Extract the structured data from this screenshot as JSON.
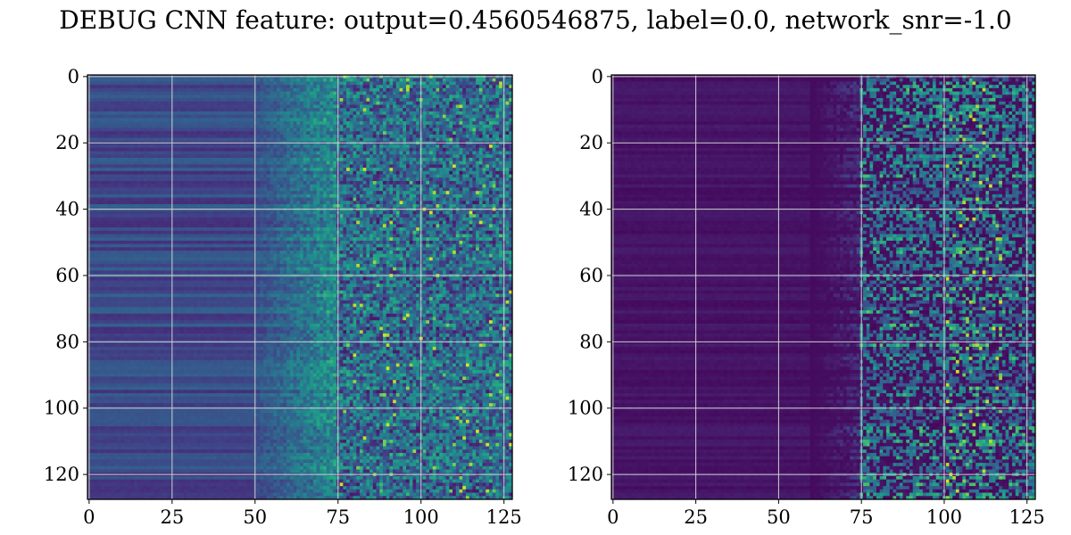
{
  "title": "DEBUG CNN feature: output=0.4560546875, label=0.0, network_snr=-1.0",
  "colormap": "viridis",
  "colors": {
    "grid": "#d0d0d0",
    "axis": "#000000",
    "background": "#ffffff"
  },
  "chart_data": [
    {
      "type": "heatmap",
      "title": "",
      "xlabel": "",
      "ylabel": "",
      "rows": 128,
      "cols": 128,
      "xlim": [
        0,
        127
      ],
      "ylim": [
        127,
        0
      ],
      "x_ticks": [
        0,
        25,
        50,
        75,
        100,
        125
      ],
      "y_ticks": [
        0,
        20,
        40,
        60,
        80,
        100,
        120
      ],
      "grid": true,
      "colormap": "viridis",
      "description_of_values": "low dim stripes for columns 0-50, noisy mixed intensities increasing toward columns 75-127"
    },
    {
      "type": "heatmap",
      "title": "",
      "xlabel": "",
      "ylabel": "",
      "rows": 128,
      "cols": 128,
      "xlim": [
        0,
        127
      ],
      "ylim": [
        127,
        0
      ],
      "x_ticks": [
        0,
        25,
        50,
        75,
        100,
        125
      ],
      "y_ticks": [
        0,
        20,
        40,
        60,
        80,
        100,
        120
      ],
      "grid": true,
      "colormap": "viridis",
      "description_of_values": "near-zero dark values for columns 0-60, sparse bright streaks for columns 70-127"
    }
  ]
}
